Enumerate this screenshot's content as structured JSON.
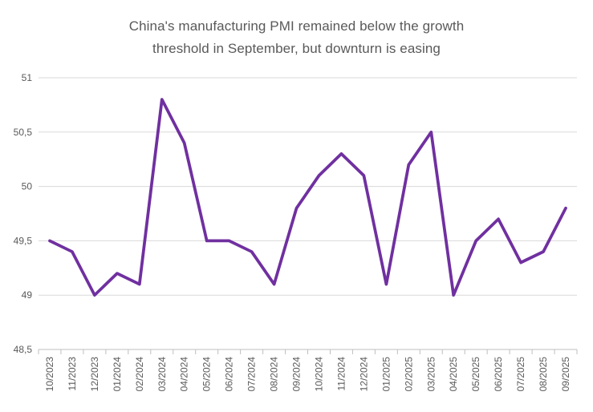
{
  "chart_data": {
    "type": "line",
    "title": "China's manufacturing PMI remained below the growth threshold in September, but downturn is easing",
    "title_lines": [
      "China's manufacturing PMI remained below the growth",
      "threshold in September, but downturn is easing"
    ],
    "categories": [
      "10/2023",
      "11/2023",
      "12/2023",
      "01/2024",
      "02/2024",
      "03/2024",
      "04/2024",
      "05/2024",
      "06/2024",
      "07/2024",
      "08/2024",
      "09/2024",
      "10/2024",
      "11/2024",
      "12/2024",
      "01/2025",
      "02/2025",
      "03/2025",
      "04/2025",
      "05/2025",
      "06/2025",
      "07/2025",
      "08/2025",
      "09/2025"
    ],
    "values": [
      49.5,
      49.4,
      49.0,
      49.2,
      49.1,
      50.8,
      50.4,
      49.5,
      49.5,
      49.4,
      49.1,
      49.8,
      50.1,
      50.3,
      50.1,
      49.1,
      50.2,
      50.5,
      49.0,
      49.5,
      49.7,
      49.3,
      49.4,
      49.8
    ],
    "ylim": [
      48.5,
      51
    ],
    "ytick_step": 0.5,
    "ytick_labels": [
      "48,5",
      "49",
      "49,5",
      "50",
      "50,5",
      "51"
    ],
    "xlabel": "",
    "ylabel": "",
    "grid": true,
    "legend_position": "none",
    "decimal_separator": ",",
    "x_label_rotation_deg": -90,
    "colors": {
      "line": "#7030A0",
      "title_text": "#595959",
      "axis_text": "#595959",
      "gridline": "#D9D9D9",
      "axis_line": "#BFBFBF",
      "background": "#FFFFFF"
    }
  }
}
